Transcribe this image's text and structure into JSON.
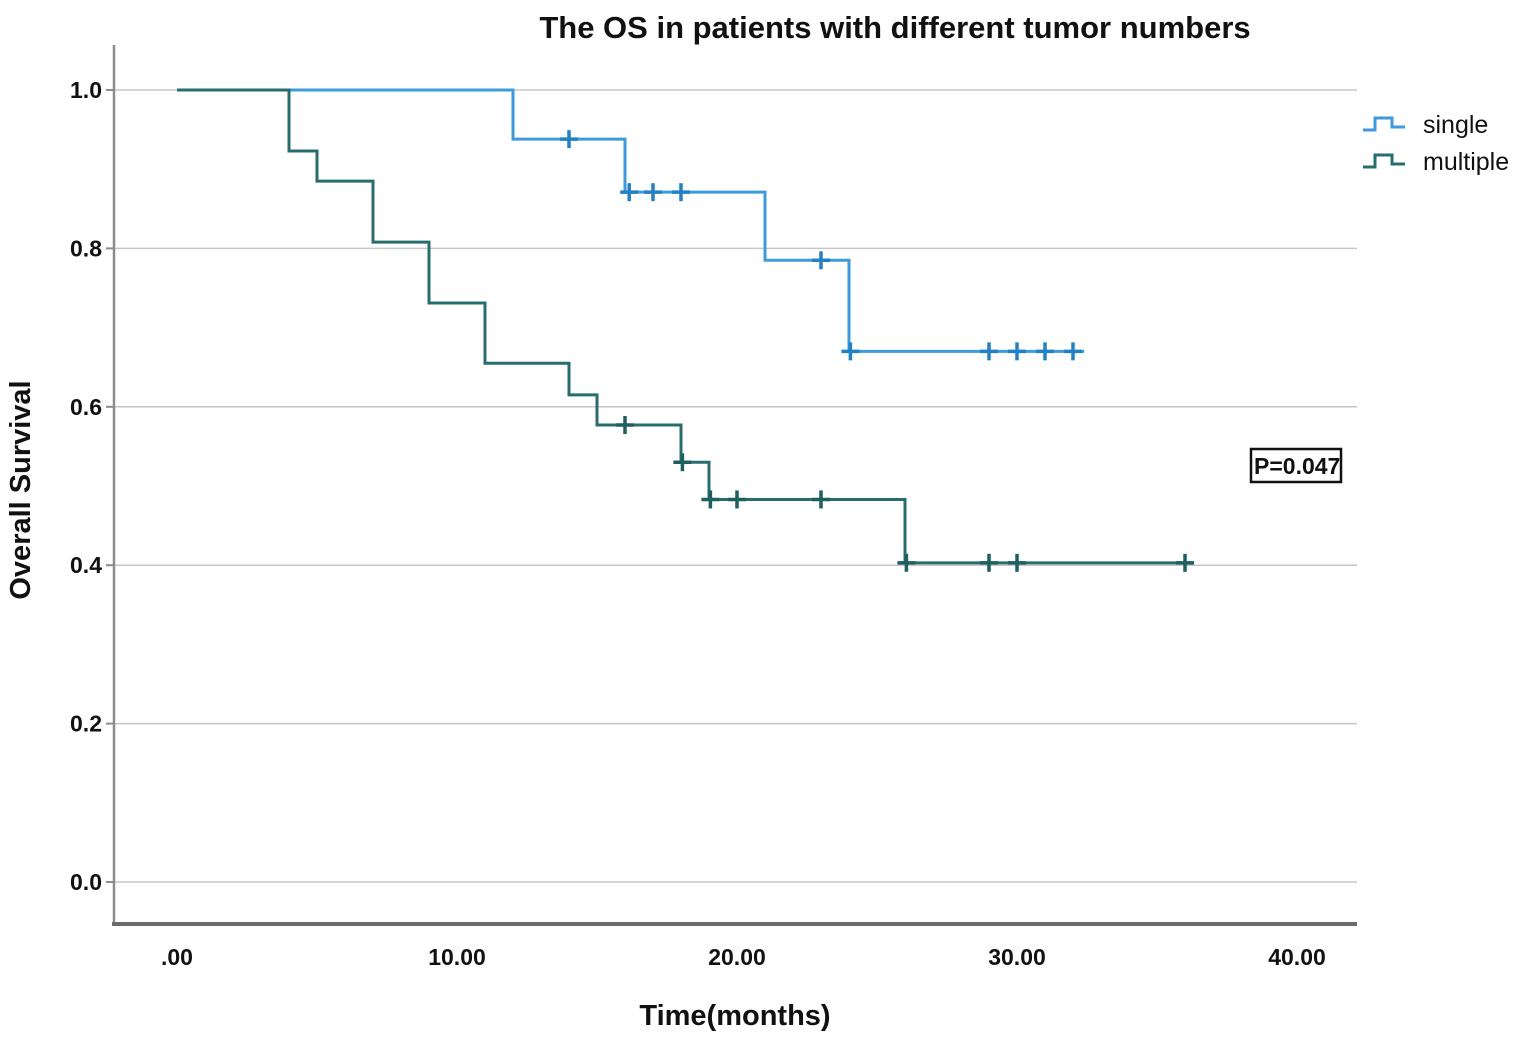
{
  "title": "The OS in patients with different tumor numbers",
  "x_axis": {
    "label": "Time(months)",
    "tick_labels": [
      ".00",
      "10.00",
      "20.00",
      "30.00",
      "40.00"
    ],
    "tick_values": [
      0,
      10,
      20,
      30,
      40
    ]
  },
  "y_axis": {
    "label": "Overall Survival",
    "tick_labels": [
      "1.0",
      "0.8",
      "0.6",
      "0.4",
      "0.2",
      "0.0"
    ],
    "tick_values": [
      1.0,
      0.8,
      0.6,
      0.4,
      0.2,
      0.0
    ]
  },
  "annotation": {
    "p_value": "P=0.047"
  },
  "legend": {
    "items": [
      {
        "label": "single",
        "color": "#3E9ADB"
      },
      {
        "label": "multiple",
        "color": "#286D6E"
      }
    ]
  },
  "colors": {
    "single_line": "#3E9ADB",
    "single_censor": "#2380C4",
    "multiple_line": "#286D6E",
    "multiple_censor": "#1E5F60",
    "gridline": "#C6C6C6",
    "y_axis_line": "#8C8C8C",
    "x_axis_line": "#6B6B6B",
    "text": "#111111"
  },
  "chart_data": {
    "type": "line",
    "subtype": "kaplan-meier-step",
    "title": "The OS in patients with different tumor numbers",
    "xlabel": "Time(months)",
    "ylabel": "Overall Survival",
    "xlim": [
      0,
      42
    ],
    "ylim": [
      0.0,
      1.0
    ],
    "grid": "horizontal",
    "legend_position": "top-right",
    "series": [
      {
        "name": "single",
        "color": "#3E9ADB",
        "censor_color": "#2380C4",
        "steps": [
          [
            0,
            1.0
          ],
          [
            12,
            1.0
          ],
          [
            12,
            0.938
          ],
          [
            16,
            0.938
          ],
          [
            16,
            0.871
          ],
          [
            21,
            0.871
          ],
          [
            21,
            0.785
          ],
          [
            24,
            0.785
          ],
          [
            24,
            0.67
          ],
          [
            32.4,
            0.67
          ]
        ],
        "censors": [
          [
            14,
            0.938
          ],
          [
            16.15,
            0.871
          ],
          [
            17,
            0.871
          ],
          [
            18,
            0.871
          ],
          [
            23,
            0.785
          ],
          [
            24.05,
            0.67
          ],
          [
            29,
            0.67
          ],
          [
            30,
            0.67
          ],
          [
            31,
            0.67
          ],
          [
            32,
            0.67
          ]
        ]
      },
      {
        "name": "multiple",
        "color": "#286D6E",
        "censor_color": "#1E5F60",
        "steps": [
          [
            0,
            1.0
          ],
          [
            4,
            1.0
          ],
          [
            4,
            0.923
          ],
          [
            5,
            0.923
          ],
          [
            5,
            0.885
          ],
          [
            7,
            0.885
          ],
          [
            7,
            0.808
          ],
          [
            9,
            0.808
          ],
          [
            9,
            0.731
          ],
          [
            11,
            0.731
          ],
          [
            11,
            0.655
          ],
          [
            14,
            0.655
          ],
          [
            14,
            0.615
          ],
          [
            15,
            0.615
          ],
          [
            15,
            0.577
          ],
          [
            18,
            0.577
          ],
          [
            18,
            0.53
          ],
          [
            19,
            0.53
          ],
          [
            19,
            0.483
          ],
          [
            26,
            0.483
          ],
          [
            26,
            0.403
          ],
          [
            36.3,
            0.403
          ]
        ],
        "censors": [
          [
            16,
            0.577
          ],
          [
            18.05,
            0.53
          ],
          [
            19.05,
            0.483
          ],
          [
            20,
            0.483
          ],
          [
            23,
            0.483
          ],
          [
            26.05,
            0.403
          ],
          [
            29,
            0.403
          ],
          [
            30,
            0.403
          ],
          [
            36,
            0.403
          ]
        ]
      }
    ]
  }
}
